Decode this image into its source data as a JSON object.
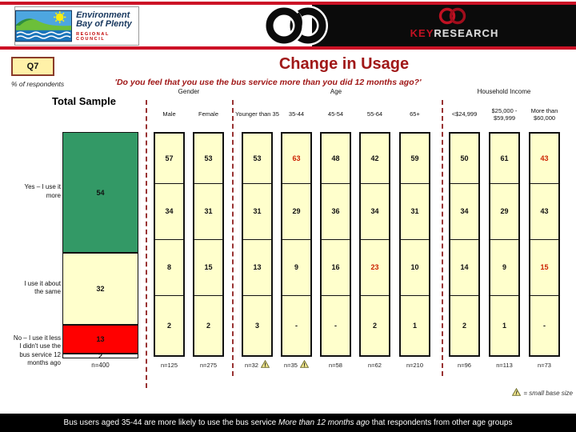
{
  "header": {
    "org": {
      "line1": "Environment",
      "line2": "Bay of Plenty",
      "sub": "REGIONAL COUNCIL"
    },
    "brand": {
      "key": "KEY",
      "research": "RESEARCH"
    }
  },
  "badge": "Q7",
  "title": "Change in Usage",
  "subtitle": "'Do you feel that you use the bus service more than you did 12 months ago?'",
  "pct_note": "% of respondents",
  "total_label": "Total Sample",
  "legend_note": "= small base size",
  "footer": {
    "pre": "Bus users aged 35-44 are more likely to use the bus service ",
    "italic": "More than 12 months ago",
    "post": " that respondents from other age groups"
  },
  "chart_data": {
    "type": "bar",
    "title": "Change in Usage",
    "unit": "% of respondents",
    "rows": [
      "Yes – I use it more",
      "I use it about the same",
      "No – I use it less",
      "I didn't use the bus service 12 months ago"
    ],
    "row_display_lines": [
      [
        "Yes – I use it",
        "more"
      ],
      [
        "I use it about",
        "the same"
      ],
      [
        "No – I use it less"
      ],
      [
        "I didn't use the",
        "bus service 12",
        "months ago"
      ]
    ],
    "segment_colors": [
      "#339966",
      "#ffffcc",
      "#ff0000",
      "#ffffff"
    ],
    "total_sample": {
      "values": [
        54,
        32,
        13,
        2
      ],
      "n": "n=400"
    },
    "groups": [
      {
        "label": "Gender",
        "columns": [
          {
            "label": "Male",
            "values": [
              57,
              34,
              8,
              2
            ],
            "n": "n=125",
            "warning": false,
            "red_rows": []
          },
          {
            "label": "Female",
            "values": [
              53,
              31,
              15,
              2
            ],
            "n": "n=275",
            "warning": false,
            "red_rows": []
          }
        ]
      },
      {
        "label": "Age",
        "columns": [
          {
            "label": "Younger than 35",
            "values": [
              53,
              31,
              13,
              3
            ],
            "n": "n=32",
            "warning": true,
            "red_rows": []
          },
          {
            "label": "35-44",
            "values": [
              63,
              29,
              9,
              "-"
            ],
            "n": "n=35",
            "warning": true,
            "red_rows": [
              0
            ]
          },
          {
            "label": "45-54",
            "values": [
              48,
              36,
              16,
              "-"
            ],
            "n": "n=58",
            "warning": false,
            "red_rows": []
          },
          {
            "label": "55-64",
            "values": [
              42,
              34,
              23,
              2
            ],
            "n": "n=62",
            "warning": false,
            "red_rows": [
              2
            ]
          },
          {
            "label": "65+",
            "values": [
              59,
              31,
              10,
              1
            ],
            "n": "n=210",
            "warning": false,
            "red_rows": []
          }
        ]
      },
      {
        "label": "Household Income",
        "columns": [
          {
            "label": "<$24,999",
            "values": [
              50,
              34,
              14,
              2
            ],
            "n": "n=96",
            "warning": false,
            "red_rows": []
          },
          {
            "label": "$25,000 - $59,999",
            "values": [
              61,
              29,
              9,
              1
            ],
            "n": "n=113",
            "warning": false,
            "red_rows": []
          },
          {
            "label": "More than $60,000",
            "values": [
              43,
              43,
              15,
              "-"
            ],
            "n": "n=73",
            "warning": false,
            "red_rows": [
              0,
              2
            ]
          }
        ]
      }
    ]
  }
}
